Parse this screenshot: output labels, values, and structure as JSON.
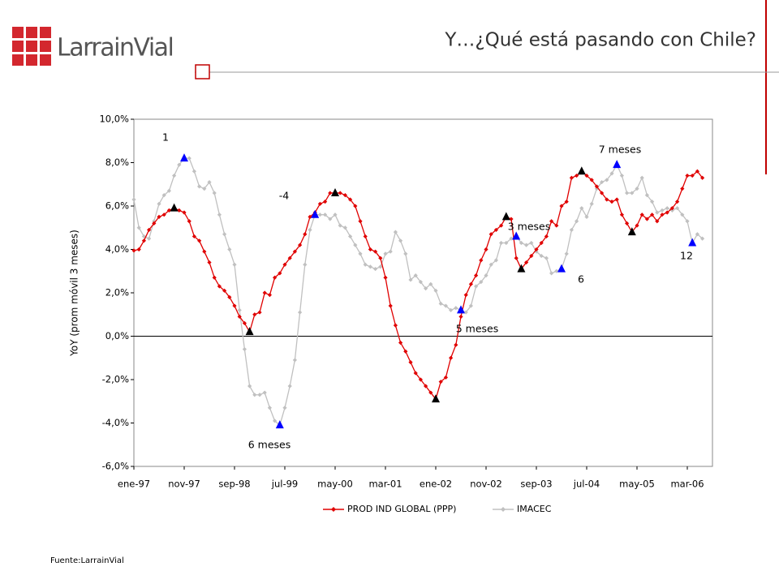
{
  "header": {
    "logo": "LarrainVial",
    "title": "Y…¿Qué está pasando con Chile?"
  },
  "footer": {
    "source": "Fuente:LarrainVial"
  },
  "chart_data": {
    "type": "line",
    "y_label": "YoY (prom móvil 3 meses)",
    "categories": [
      "ene-97",
      null,
      null,
      null,
      null,
      null,
      null,
      null,
      null,
      null,
      "nov-97",
      null,
      null,
      null,
      null,
      null,
      null,
      null,
      null,
      null,
      "sep-98",
      null,
      null,
      null,
      null,
      null,
      null,
      null,
      null,
      null,
      "jul-99",
      null,
      null,
      null,
      null,
      null,
      null,
      null,
      null,
      null,
      "may-00",
      null,
      null,
      null,
      null,
      null,
      null,
      null,
      null,
      null,
      "mar-01",
      null,
      null,
      null,
      null,
      null,
      null,
      null,
      null,
      null,
      "ene-02",
      null,
      null,
      null,
      null,
      null,
      null,
      null,
      null,
      null,
      "nov-02",
      null,
      null,
      null,
      null,
      null,
      null,
      null,
      null,
      null,
      "sep-03",
      null,
      null,
      null,
      null,
      null,
      null,
      null,
      null,
      null,
      "jul-04",
      null,
      null,
      null,
      null,
      null,
      null,
      null,
      null,
      null,
      "may-05",
      null,
      null,
      null,
      null,
      null,
      null,
      null,
      null,
      null,
      "mar-06",
      null,
      null,
      null
    ],
    "series": [
      {
        "name": "PROD IND GLOBAL (PPP)",
        "color": "#e00000",
        "turning_point_color": "#000000",
        "values": [
          3.95,
          4.0,
          4.4,
          4.9,
          5.2,
          5.5,
          5.6,
          5.8,
          5.9,
          5.8,
          5.7,
          5.3,
          4.6,
          4.4,
          3.9,
          3.4,
          2.7,
          2.3,
          2.1,
          1.8,
          1.4,
          0.9,
          0.6,
          0.2,
          1.0,
          1.1,
          2.0,
          1.9,
          2.7,
          2.9,
          3.3,
          3.6,
          3.9,
          4.2,
          4.7,
          5.5,
          5.7,
          6.1,
          6.2,
          6.6,
          6.6,
          6.6,
          6.5,
          6.3,
          6.0,
          5.3,
          4.6,
          4.0,
          3.9,
          3.6,
          2.7,
          1.4,
          0.5,
          -0.3,
          -0.7,
          -1.2,
          -1.7,
          -2.0,
          -2.3,
          -2.6,
          -2.9,
          -2.1,
          -1.9,
          -1.0,
          -0.4,
          0.9,
          1.9,
          2.4,
          2.8,
          3.5,
          4.0,
          4.7,
          4.9,
          5.1,
          5.5,
          5.4,
          3.6,
          3.1,
          3.4,
          3.7,
          4.0,
          4.3,
          4.6,
          5.3,
          5.1,
          6.0,
          6.2,
          7.3,
          7.4,
          7.6,
          7.4,
          7.2,
          6.9,
          6.6,
          6.3,
          6.2,
          6.3,
          5.6,
          5.2,
          4.8,
          5.1,
          5.6,
          5.4,
          5.6,
          5.3,
          5.6,
          5.7,
          5.9,
          6.2,
          6.8,
          7.4,
          7.4,
          7.6,
          7.3
        ],
        "turning_points": [
          8,
          23,
          40,
          60,
          74,
          77,
          89,
          99
        ]
      },
      {
        "name": "IMACEC",
        "color": "#c0c0c0",
        "turning_point_color": "#0000ff",
        "values": [
          6.3,
          5.0,
          4.6,
          4.5,
          5.3,
          6.1,
          6.5,
          6.7,
          7.4,
          7.9,
          8.2,
          8.2,
          7.6,
          6.9,
          6.8,
          7.1,
          6.6,
          5.6,
          4.7,
          4.0,
          3.3,
          1.2,
          -0.6,
          -2.3,
          -2.7,
          -2.7,
          -2.6,
          -3.3,
          -3.9,
          -4.1,
          -3.3,
          -2.3,
          -1.1,
          1.1,
          3.3,
          4.9,
          5.6,
          5.6,
          5.6,
          5.4,
          5.6,
          5.1,
          5.0,
          4.6,
          4.2,
          3.8,
          3.3,
          3.2,
          3.1,
          3.2,
          3.8,
          3.9,
          4.8,
          4.4,
          3.8,
          2.6,
          2.8,
          2.5,
          2.2,
          2.4,
          2.1,
          1.5,
          1.4,
          1.2,
          1.3,
          1.2,
          1.1,
          1.4,
          2.3,
          2.5,
          2.8,
          3.3,
          3.5,
          4.3,
          4.3,
          4.5,
          4.6,
          4.3,
          4.2,
          4.3,
          3.9,
          3.7,
          3.6,
          2.9,
          3.0,
          3.1,
          3.8,
          4.9,
          5.3,
          5.9,
          5.5,
          6.1,
          6.8,
          7.1,
          7.2,
          7.5,
          7.9,
          7.4,
          6.6,
          6.6,
          6.8,
          7.3,
          6.5,
          6.2,
          5.7,
          5.8,
          5.9,
          5.8,
          5.9,
          5.6,
          5.3,
          4.3,
          4.7,
          4.5
        ],
        "turning_points": [
          10,
          29,
          36,
          65,
          76,
          85,
          96,
          111
        ]
      }
    ],
    "ylim": [
      -6,
      10
    ],
    "yticks": [
      {
        "value": -6,
        "label": "-6,0%"
      },
      {
        "value": -4,
        "label": "-4,0%"
      },
      {
        "value": -2,
        "label": "-2,0%"
      },
      {
        "value": 0,
        "label": "0,0%"
      },
      {
        "value": 2,
        "label": "2,0%"
      },
      {
        "value": 4,
        "label": "4,0%"
      },
      {
        "value": 6,
        "label": "6,0%"
      },
      {
        "value": 8,
        "label": "8,0%"
      },
      {
        "value": 10,
        "label": "10,0%"
      }
    ],
    "annotations": [
      "1",
      "-4",
      "6 meses",
      "5 meses",
      "3 meses",
      "6",
      "7 meses",
      "12"
    ],
    "legend": "bottom"
  }
}
